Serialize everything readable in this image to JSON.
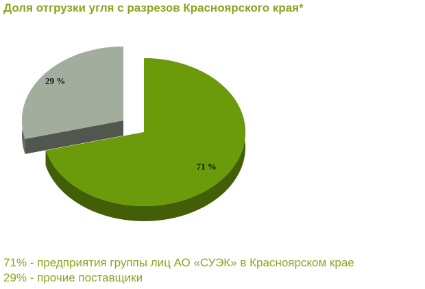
{
  "chart_data": {
    "type": "pie",
    "title": "Доля отгрузки угля с разрезов Красноярского края*",
    "categories": [
      "71% - предприятия группы лиц АО «СУЭК» в Красноярском крае",
      "29% - прочие поставщики"
    ],
    "values": [
      71,
      29
    ],
    "value_labels": [
      "71 %",
      "29 %"
    ],
    "colors": [
      "#6b9a0b",
      "#a2ad9e"
    ],
    "exploded": [
      false,
      true
    ],
    "legend": "bottom"
  }
}
